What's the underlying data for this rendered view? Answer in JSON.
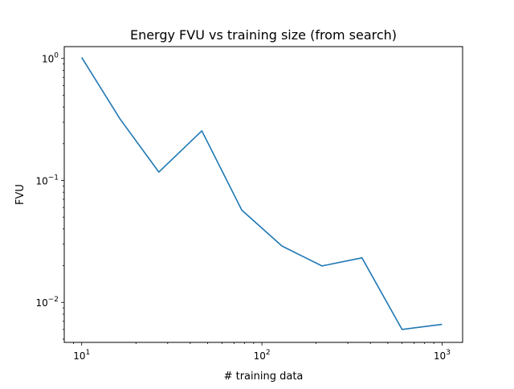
{
  "chart_data": {
    "type": "line",
    "title": "Energy FVU vs training size (from search)",
    "xlabel": "# training data",
    "ylabel": "FVU",
    "xscale": "log",
    "yscale": "log",
    "xlim": [
      8,
      1300
    ],
    "ylim": [
      0.0047,
      1.25
    ],
    "grid": false,
    "x_ticks": [
      {
        "value": 10,
        "base": "10",
        "exp": "1"
      },
      {
        "value": 100,
        "base": "10",
        "exp": "2"
      },
      {
        "value": 1000,
        "base": "10",
        "exp": "3"
      }
    ],
    "y_ticks": [
      {
        "value": 0.01,
        "base": "10",
        "exp": "−2"
      },
      {
        "value": 0.1,
        "base": "10",
        "exp": "−1"
      },
      {
        "value": 1,
        "base": "10",
        "exp": "0"
      }
    ],
    "series": [
      {
        "color": "#1f77b4",
        "x": [
          10,
          16.3,
          26.8,
          46.4,
          77.4,
          129.2,
          215.4,
          359.4,
          599.5,
          1000
        ],
        "y": [
          1.02,
          0.32,
          0.117,
          0.255,
          0.057,
          0.029,
          0.0199,
          0.0232,
          0.006,
          0.0066
        ]
      }
    ]
  }
}
